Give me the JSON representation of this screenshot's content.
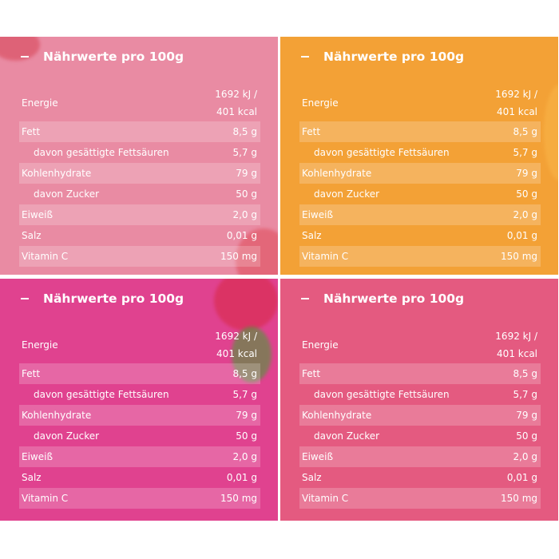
{
  "panels": [
    {
      "title": "Nährwerte pro 100g",
      "energy_label": "Energie",
      "energy_kj": "1692 kJ /",
      "energy_kcal": "401 kcal",
      "rows": [
        {
          "label": "Fett",
          "value": "8,5 g"
        },
        {
          "label": "davon gesättigte Fettsäuren",
          "value": "5,7 g"
        },
        {
          "label": "Kohlenhydrate",
          "value": "79 g"
        },
        {
          "label": "davon Zucker",
          "value": "50 g"
        },
        {
          "label": "Eiweiß",
          "value": "2,0 g"
        },
        {
          "label": "Salz",
          "value": "0,01 g"
        },
        {
          "label": "Vitamin C",
          "value": "150 mg"
        }
      ]
    },
    {
      "title": "Nährwerte pro 100g",
      "energy_label": "Energie",
      "energy_kj": "1692 kJ /",
      "energy_kcal": "401 kcal",
      "rows": [
        {
          "label": "Fett",
          "value": "8,5 g"
        },
        {
          "label": "davon gesättigte Fettsäuren",
          "value": "5,7 g"
        },
        {
          "label": "Kohlenhydrate",
          "value": "79 g"
        },
        {
          "label": "davon Zucker",
          "value": "50 g"
        },
        {
          "label": "Eiweiß",
          "value": "2,0 g"
        },
        {
          "label": "Salz",
          "value": "0,01 g"
        },
        {
          "label": "Vitamin C",
          "value": "150 mg"
        }
      ]
    },
    {
      "title": "Nährwerte pro 100g",
      "energy_label": "Energie",
      "energy_kj": "1692 kJ /",
      "energy_kcal": "401 kcal",
      "rows": [
        {
          "label": "Fett",
          "value": "8,5 g"
        },
        {
          "label": "davon gesättigte Fettsäuren",
          "value": "5,7 g"
        },
        {
          "label": "Kohlenhydrate",
          "value": "79 g"
        },
        {
          "label": "davon Zucker",
          "value": "50 g"
        },
        {
          "label": "Eiweiß",
          "value": "2,0 g"
        },
        {
          "label": "Salz",
          "value": "0,01 g"
        },
        {
          "label": "Vitamin C",
          "value": "150 mg"
        }
      ]
    },
    {
      "title": "Nährwerte pro 100g",
      "energy_label": "Energie",
      "energy_kj": "1692 kJ /",
      "energy_kcal": "401 kcal",
      "rows": [
        {
          "label": "Fett",
          "value": "8,5 g"
        },
        {
          "label": "davon gesättigte Fettsäuren",
          "value": "5,7 g"
        },
        {
          "label": "Kohlenhydrate",
          "value": "79 g"
        },
        {
          "label": "davon Zucker",
          "value": "50 g"
        },
        {
          "label": "Eiweiß",
          "value": "2,0 g"
        },
        {
          "label": "Salz",
          "value": "0,01 g"
        },
        {
          "label": "Vitamin C",
          "value": "150 mg"
        }
      ]
    }
  ]
}
